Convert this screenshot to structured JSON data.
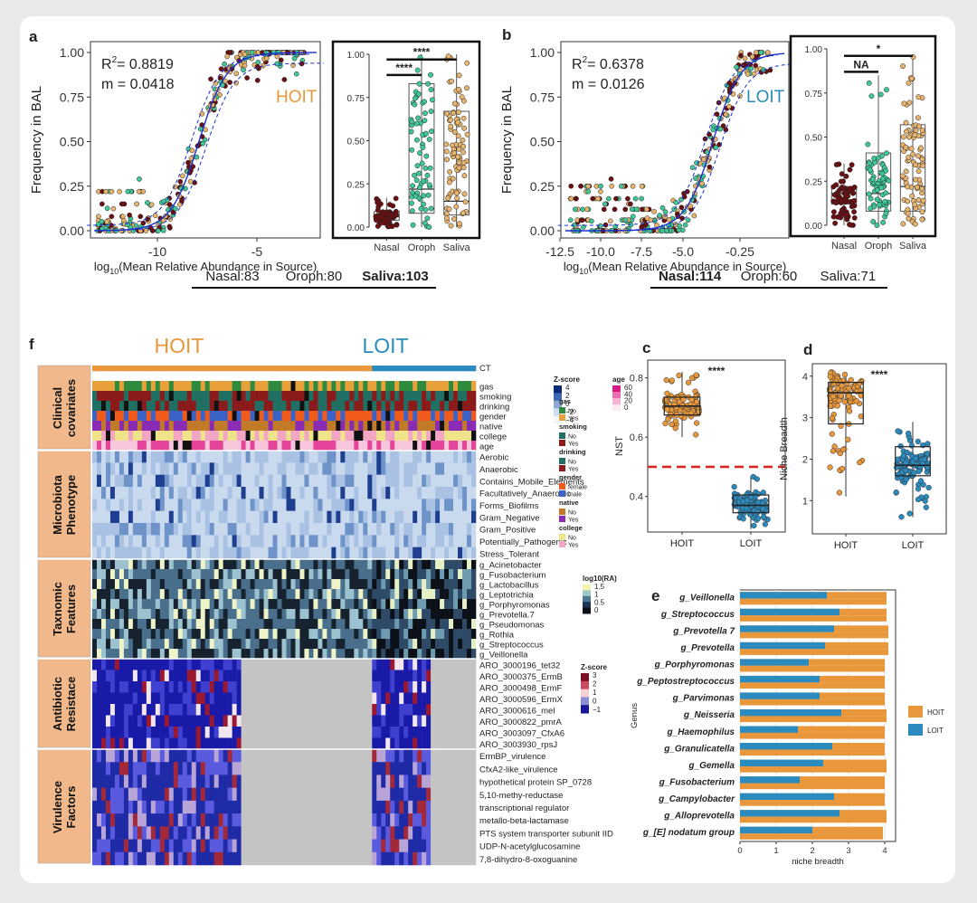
{
  "panels": {
    "a": "a",
    "b": "b",
    "c": "c",
    "d": "d",
    "e": "e",
    "f": "f"
  },
  "colors": {
    "hoit": "#e8973a",
    "loit": "#2b8bbf",
    "nasal": "#6b0f13",
    "oroph": "#3fc79a",
    "saliva": "#e6b46e",
    "threshold": "#d62728"
  },
  "chart_data": [
    {
      "id": "a-scatter",
      "type": "scatter",
      "label": "HOIT",
      "ylabel": "Frequency in BAL",
      "xlabel_main": "log",
      "xlabel_sub": "10",
      "xlabel_rest": "(Mean Relative Abundance in Source)",
      "x_ticks": [
        "-10",
        "-5"
      ],
      "y_ticks": [
        "0.00",
        "0.25",
        "0.50",
        "0.75",
        "1.00"
      ],
      "xlim": [
        -13.5,
        -1
      ],
      "ylim": [
        0,
        1
      ],
      "r2_prefix": "R",
      "r2_sup": "2",
      "r2_value": "= 0.8819",
      "m_text": "m = 0.0418",
      "fit_inflection": -7.6,
      "fit_slope": 1.3
    },
    {
      "id": "a-box",
      "type": "box",
      "categories": [
        "Nasal",
        "Oroph",
        "Saliva"
      ],
      "y_ticks": [
        "0.00",
        "0.25",
        "0.50",
        "0.75",
        "1.00"
      ],
      "boxes": [
        {
          "q1": 0.04,
          "median": 0.06,
          "q3": 0.09,
          "wmin": 0.0,
          "wmax": 0.17
        },
        {
          "q1": 0.08,
          "median": 0.22,
          "q3": 0.83,
          "wmin": 0.0,
          "wmax": 1.0
        },
        {
          "q1": 0.07,
          "median": 0.15,
          "q3": 0.67,
          "wmin": 0.0,
          "wmax": 1.0
        }
      ],
      "sig": [
        {
          "from": 0,
          "to": 1,
          "label": "****",
          "y": 0.88
        },
        {
          "from": 0,
          "to": 2,
          "label": "****",
          "y": 0.97
        }
      ]
    },
    {
      "id": "b-scatter",
      "type": "scatter",
      "label": "LOIT",
      "ylabel": "Frequency in BAL",
      "xlabel_main": "log",
      "xlabel_sub": "10",
      "xlabel_rest": "(Mean Relative Abundance in Source)",
      "x_ticks": [
        "-12.5",
        "-10.0",
        "-7.5",
        "-5.0",
        "-0.25"
      ],
      "y_ticks": [
        "0.00",
        "0.25",
        "0.50",
        "0.75",
        "1.00"
      ],
      "xlim": [
        -12.8,
        -2.6
      ],
      "ylim": [
        0,
        1
      ],
      "r2_prefix": "R",
      "r2_sup": "2",
      "r2_value": "= 0.6378",
      "m_text": "m = 0.0126",
      "fit_inflection": -6.0,
      "fit_slope": 1.6
    },
    {
      "id": "b-box",
      "type": "box",
      "categories": [
        "Nasal",
        "Oroph",
        "Saliva"
      ],
      "y_ticks": [
        "0.00",
        "0.25",
        "0.50",
        "0.75",
        "1.00"
      ],
      "boxes": [
        {
          "q1": 0.12,
          "median": 0.18,
          "q3": 0.22,
          "wmin": 0.0,
          "wmax": 0.35
        },
        {
          "q1": 0.08,
          "median": 0.18,
          "q3": 0.41,
          "wmin": 0.0,
          "wmax": 0.85
        },
        {
          "q1": 0.08,
          "median": 0.22,
          "q3": 0.57,
          "wmin": 0.0,
          "wmax": 0.97
        }
      ],
      "sig": [
        {
          "from": 0,
          "to": 1,
          "label": "NA",
          "y": 0.87
        },
        {
          "from": 0,
          "to": 2,
          "label": "*",
          "y": 0.96
        }
      ]
    },
    {
      "id": "c-nst",
      "type": "box",
      "categories": [
        "HOIT",
        "LOIT"
      ],
      "ylabel": "NST",
      "y_ticks": [
        "0.4",
        "0.6",
        "0.8"
      ],
      "ylim": [
        0.28,
        0.86
      ],
      "boxes": [
        {
          "q1": 0.675,
          "median": 0.705,
          "q3": 0.735,
          "wmin": 0.6,
          "wmax": 0.82
        },
        {
          "q1": 0.345,
          "median": 0.37,
          "q3": 0.405,
          "wmin": 0.29,
          "wmax": 0.47
        }
      ],
      "threshold": 0.5,
      "sig_label": "****"
    },
    {
      "id": "d-niche",
      "type": "box",
      "categories": [
        "HOIT",
        "LOIT"
      ],
      "ylabel": "Niche Breadth",
      "y_ticks": [
        "1",
        "2",
        "3",
        "4"
      ],
      "ylim": [
        0.2,
        4.3
      ],
      "boxes": [
        {
          "q1": 2.85,
          "median": 3.6,
          "q3": 3.85,
          "wmin": 1.1,
          "wmax": 4.1
        },
        {
          "q1": 1.6,
          "median": 1.85,
          "q3": 2.3,
          "wmin": 0.6,
          "wmax": 2.9
        }
      ],
      "sig_label": "****"
    },
    {
      "id": "e-bars",
      "type": "bar",
      "ylabel": "Genus",
      "xlabel": "niche breadth",
      "x_ticks": [
        "0",
        "1",
        "2",
        "3",
        "4"
      ],
      "xlim": [
        0,
        4.3
      ],
      "categories": [
        "g_Veillonella",
        "g_Streptococcus",
        "g_Prevotella 7",
        "g_Prevotella",
        "g_Porphyromonas",
        "g_Peptostreptococcus",
        "g_Parvimonas",
        "g_Neisseria",
        "g_Haemophilus",
        "g_Granulicatella",
        "g_Gemella",
        "g_Fusobacterium",
        "g_Campylobacter",
        "g_Alloprevotella",
        "g_[E] nodatum group"
      ],
      "series": [
        {
          "name": "HOIT",
          "values": [
            4.05,
            4.05,
            4.1,
            4.1,
            4.0,
            4.0,
            4.0,
            4.05,
            4.0,
            4.0,
            4.05,
            4.0,
            4.0,
            4.05,
            3.95
          ]
        },
        {
          "name": "LOIT",
          "values": [
            2.4,
            2.75,
            2.6,
            2.35,
            1.9,
            2.2,
            2.2,
            2.8,
            1.6,
            2.55,
            2.3,
            1.65,
            2.6,
            2.75,
            2.0
          ]
        }
      ]
    }
  ],
  "panel_a": {
    "counts": [
      {
        "label": "Nasal:83",
        "bold": false
      },
      {
        "label": "Oroph:80",
        "bold": false
      },
      {
        "label": "Saliva:103",
        "bold": true
      }
    ]
  },
  "panel_b": {
    "counts": [
      {
        "label": "Nasal:114",
        "bold": true
      },
      {
        "label": "Oroph:60",
        "bold": false
      },
      {
        "label": "Saliva:71",
        "bold": false
      }
    ]
  },
  "heatmap": {
    "hoit_title": "HOIT",
    "loit_title": "LOIT",
    "sections": [
      {
        "title": "Clinical covariates",
        "lines": [
          "Clinical",
          "covariates"
        ],
        "rows": [
          "CT",
          "gas",
          "smoking",
          "drinking",
          "gender",
          "native",
          "college",
          "age"
        ]
      },
      {
        "title": "Microbiota Phenotype",
        "lines": [
          "Microbiota",
          "Phenotype"
        ],
        "rows": [
          "Aerobic",
          "Anaerobic",
          "Contains_Mobile_Elements",
          "Facultatively_Anaerobic",
          "Forms_Biofilms",
          "Gram_Negative",
          "Gram_Positive",
          "Potentially_Pathogenic",
          "Stress_Tolerant"
        ]
      },
      {
        "title": "Taxnomic Features",
        "lines": [
          "Taxnomic",
          "Features"
        ],
        "rows": [
          "g_Acinetobacter",
          "g_Fusobacterium",
          "g_Lactobacillus",
          "g_Leptotrichia",
          "g_Porphyromonas",
          "g_Prevotella.7",
          "g_Pseudomonas",
          "g_Rothia",
          "g_Streptococcus",
          "g_Veillonella"
        ]
      },
      {
        "title": "Antibiotic Resistace",
        "lines": [
          "Antibiotic",
          "Resistace"
        ],
        "rows": [
          "ARO_3000196_tet32",
          "ARO_3000375_ErmB",
          "ARO_3000498_ErmF",
          "ARO_3000596_ErmX",
          "ARO_3000616_mel",
          "ARO_3000822_pmrA",
          "ARO_3003097_CfxA6",
          "ARO_3003930_rpsJ"
        ]
      },
      {
        "title": "Virulence Factors",
        "lines": [
          "Virulence",
          "Factors"
        ],
        "rows": [
          "ErmBP_virulence",
          "CfxA2-like_virulence",
          "hypothetical protein SP_0728",
          "5,10-methy-reductase",
          "transcriptional regulator",
          "metallo-beta-lactamase",
          "PTS system transporter subunit IID",
          "UDP-N-acetylglucosamine",
          "7,8-dihydro-8-oxoguanine"
        ]
      }
    ],
    "legend_zscore1": {
      "title": "Z-score",
      "ticks": [
        "4",
        "2",
        "0",
        "−2",
        "−4"
      ]
    },
    "legend_age": {
      "title": "age",
      "ticks": [
        "60",
        "40",
        "20",
        "0"
      ]
    },
    "legend_cats": [
      {
        "title": "gas",
        "items": [
          {
            "label": "No",
            "color": "#2e8b3e"
          },
          {
            "label": "Yes",
            "color": "#e8a13a"
          }
        ]
      },
      {
        "title": "smoking",
        "items": [
          {
            "label": "No",
            "color": "#1f6f63"
          },
          {
            "label": "Yes",
            "color": "#8b1a1a"
          }
        ]
      },
      {
        "title": "drinking",
        "items": [
          {
            "label": "No",
            "color": "#1f6f63"
          },
          {
            "label": "Yes",
            "color": "#8b1a1a"
          }
        ]
      },
      {
        "title": "gender",
        "items": [
          {
            "label": "female",
            "color": "#f05a1a"
          },
          {
            "label": "male",
            "color": "#3b63c7"
          }
        ]
      },
      {
        "title": "native",
        "items": [
          {
            "label": "No",
            "color": "#c07a28"
          },
          {
            "label": "Yes",
            "color": "#8a2bb5"
          }
        ]
      },
      {
        "title": "college",
        "items": [
          {
            "label": "No",
            "color": "#efe48a"
          },
          {
            "label": "Yes",
            "color": "#f2a6c3"
          }
        ]
      }
    ],
    "legend_log": {
      "title": "log10(RA)",
      "ticks": [
        "1.5",
        "1",
        "0.5",
        "0"
      ]
    },
    "legend_zscore2": {
      "title": "Z-score",
      "ticks": [
        "3",
        "2",
        "1",
        "0",
        "−1"
      ]
    }
  },
  "legend_e": [
    {
      "label": "HOIT"
    },
    {
      "label": "LOIT"
    }
  ]
}
